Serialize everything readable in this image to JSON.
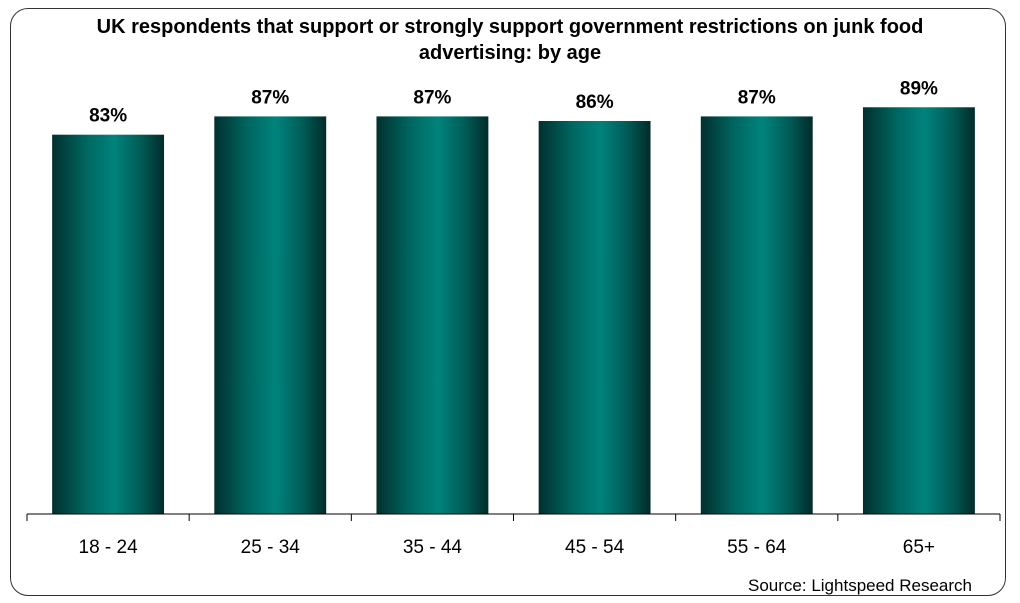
{
  "chart_data": {
    "type": "bar",
    "title": "UK respondents that support or strongly support government restrictions on junk food advertising: by age",
    "categories": [
      "18 - 24",
      "25 - 34",
      "35 - 44",
      "45 - 54",
      "55 - 64",
      "65+"
    ],
    "values": [
      83,
      87,
      87,
      86,
      87,
      89
    ],
    "data_labels": [
      "83%",
      "87%",
      "87%",
      "86%",
      "87%",
      "89%"
    ],
    "ylim": [
      0,
      100
    ],
    "grid": false,
    "legend": "none",
    "bar_color": "#00706b",
    "source": "Source: Lightspeed Research"
  }
}
